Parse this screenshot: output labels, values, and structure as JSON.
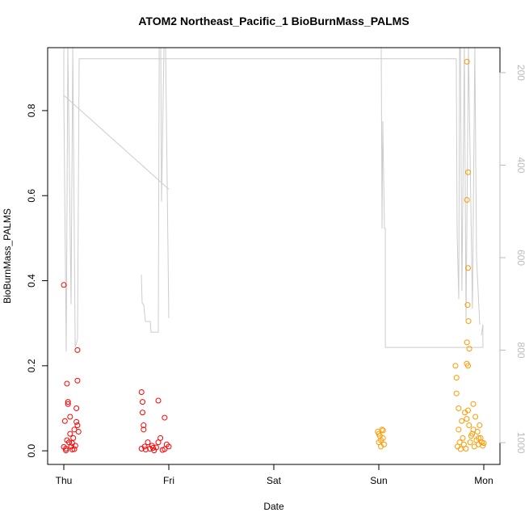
{
  "chart_data": {
    "type": "scatter",
    "title": "ATOM2 Northeast_Pacific_1 BioBurnMass_PALMS",
    "x_label": "Date",
    "y_label": "BioBurnMass_PALMS",
    "xlim": [
      -0.154,
      4.154
    ],
    "ylim": [
      -0.032,
      0.948
    ],
    "y2lim": [
      1047,
      146
    ],
    "xticks": [
      {
        "value": 0,
        "label": "Thu"
      },
      {
        "value": 1,
        "label": "Fri"
      },
      {
        "value": 2,
        "label": "Sat"
      },
      {
        "value": 3,
        "label": "Sun"
      },
      {
        "value": 4,
        "label": "Mon"
      }
    ],
    "yticks": [
      {
        "value": 0,
        "label": "0.0"
      },
      0.2,
      0.4,
      0.6,
      0.8
    ],
    "y2ticks": [
      200,
      400,
      600,
      800,
      1000
    ],
    "y2_tick_color": "#bbbbbb",
    "series": [
      {
        "color": "#ff0000",
        "x": [
          0.0,
          0.01,
          0.02,
          0.03,
          0.04,
          0.05,
          0.06,
          0.07,
          0.08,
          0.09,
          0.1,
          0.11,
          0.12,
          0.13,
          0.14,
          0.02,
          0.04,
          0.06,
          0.08,
          0.1,
          0.12,
          0.13,
          0.13,
          0.03,
          0.0,
          0.74,
          0.75,
          0.76,
          0.77,
          0.78,
          0.8,
          0.82,
          0.84,
          0.86,
          0.88,
          0.9,
          0.92,
          0.94,
          0.96,
          0.98,
          1.0,
          0.75,
          0.76,
          0.9,
          0.96,
          0.74,
          0.85
        ],
        "values": [
          0.39,
          0.07,
          0.005,
          0.158,
          0.115,
          0.02,
          0.08,
          0.01,
          0.003,
          0.03,
          0.05,
          0.012,
          0.068,
          0.237,
          0.045,
          0.001,
          0.11,
          0.04,
          0.018,
          0.004,
          0.1,
          0.165,
          0.06,
          0.025,
          0.009,
          0.138,
          0.09,
          0.05,
          0.01,
          0.003,
          0.02,
          0.005,
          0.012,
          0.001,
          0.008,
          0.118,
          0.03,
          0.002,
          0.078,
          0.015,
          0.01,
          0.115,
          0.06,
          0.02,
          0.004,
          0.005,
          0.007
        ]
      },
      {
        "color": "#ff9900",
        "x": [
          2.99,
          3.0,
          3.01,
          3.02,
          3.03,
          3.04,
          3.05,
          3.0,
          3.02,
          3.04,
          3.73,
          3.74,
          3.75,
          3.76,
          3.77,
          3.78,
          3.79,
          3.8,
          3.81,
          3.82,
          3.83,
          3.84,
          3.85,
          3.86,
          3.87,
          3.88,
          3.89,
          3.9,
          3.91,
          3.92,
          3.93,
          3.94,
          3.95,
          3.96,
          3.97,
          3.98,
          3.99,
          4.0,
          3.74,
          3.76,
          3.84,
          3.85,
          3.84,
          3.85,
          3.846,
          3.854,
          3.838,
          3.862,
          3.838,
          3.85,
          3.9,
          3.95
        ],
        "values": [
          0.045,
          0.02,
          0.035,
          0.01,
          0.05,
          0.03,
          0.015,
          0.04,
          0.025,
          0.048,
          0.2,
          0.135,
          0.01,
          0.05,
          0.02,
          0.004,
          0.07,
          0.03,
          0.015,
          0.09,
          0.005,
          0.915,
          0.655,
          0.06,
          0.02,
          0.035,
          0.04,
          0.11,
          0.01,
          0.08,
          0.025,
          0.045,
          0.015,
          0.06,
          0.03,
          0.02,
          0.012,
          0.018,
          0.172,
          0.1,
          0.59,
          0.43,
          0.255,
          0.2,
          0.343,
          0.305,
          0.205,
          0.24,
          0.075,
          0.095,
          0.05,
          0.03
        ]
      },
      {
        "type": "line",
        "axis": "y2",
        "color": "#cccccc",
        "x": [
          0,
          1.0,
          null,
          0,
          0,
          0.023,
          0.038,
          0.069,
          0.085,
          0.108,
          0.131,
          0.146,
          3.738,
          3.746,
          3.762,
          3.769,
          3.777,
          3.792,
          3.815,
          3.831,
          3.854,
          3.892,
          3.915,
          3.931,
          3.962,
          null,
          0.738,
          0.746,
          0.762,
          0.777,
          0.823,
          0.831,
          0.9,
          0.908,
          0.923,
          0.931,
          0.954,
          0.969,
          1.0,
          null,
          3.023,
          3.031,
          3.038,
          3.054,
          3.062,
          3.062,
          3.992,
          3.992,
          3.977
        ],
        "values": [
          249,
          452,
          null,
          146,
          249,
          803,
          146,
          701,
          146,
          794,
          776,
          170,
          170,
          549,
          689,
          146,
          146,
          672,
          146,
          735,
          146,
          710,
          146,
          600,
          745,
          null,
          637,
          698,
          703,
          738,
          738,
          761,
          761,
          146,
          146,
          479,
          146,
          146,
          731,
          null,
          146,
          537,
          305,
          537,
          537,
          794,
          794,
          745,
          768
        ]
      }
    ]
  }
}
